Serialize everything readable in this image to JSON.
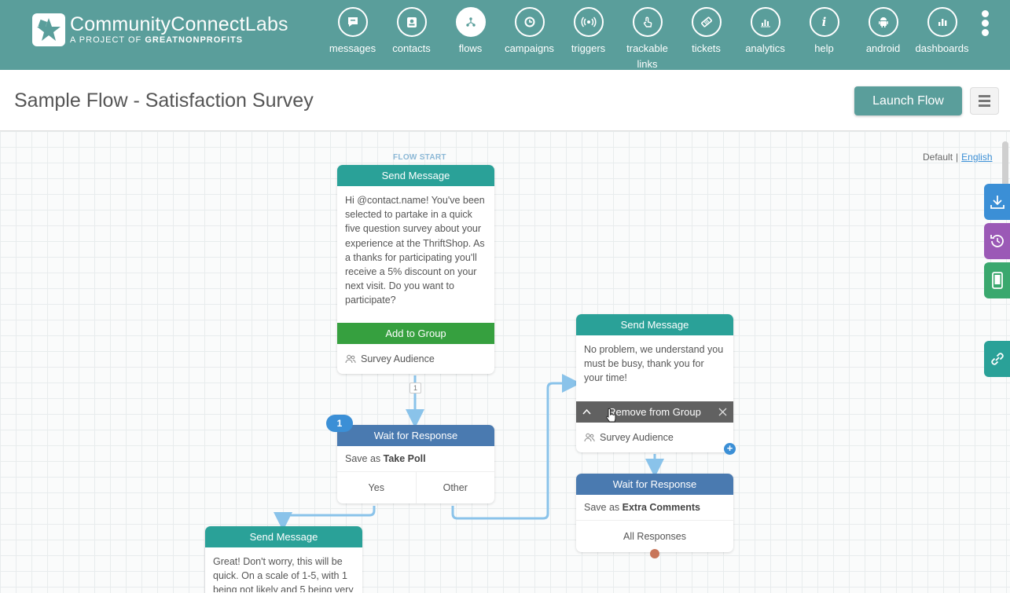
{
  "brand": {
    "title_main": "CommunityConnect",
    "title_light": "Labs",
    "subtitle_prefix": "A PROJECT OF ",
    "subtitle_bold": "GREATNONPROFITS"
  },
  "nav": {
    "items": [
      {
        "label": "messages",
        "icon": "chat-bubble-icon"
      },
      {
        "label": "contacts",
        "icon": "contact-card-icon"
      },
      {
        "label": "flows",
        "icon": "flow-tree-icon",
        "active": true
      },
      {
        "label": "campaigns",
        "icon": "campaign-clock-icon"
      },
      {
        "label": "triggers",
        "icon": "broadcast-icon"
      },
      {
        "label": "trackable links",
        "icon": "link-touch-icon"
      },
      {
        "label": "tickets",
        "icon": "ticket-icon"
      },
      {
        "label": "analytics",
        "icon": "bar-chart-icon"
      },
      {
        "label": "help",
        "icon": "info-icon"
      },
      {
        "label": "android",
        "icon": "android-icon"
      },
      {
        "label": "dashboards",
        "icon": "dashboard-bars-icon"
      }
    ],
    "accent": "#5a9e9b"
  },
  "page": {
    "title": "Sample Flow - Satisfaction Survey",
    "launch_label": "Launch Flow"
  },
  "language": {
    "default": "Default",
    "separator": "|",
    "english": "English"
  },
  "flow": {
    "start_label": "FLOW START",
    "node_msg1": {
      "header": "Send Message",
      "text": "Hi @contact.name! You've been selected to partake in a quick five question survey about your experience at the ThriftShop. As a thanks for participating you'll receive a 5% discount on your next visit. Do you want to participate?",
      "action": "Add to Group",
      "group": "Survey Audience"
    },
    "connector_count": "1",
    "node_wait1": {
      "badge": "1",
      "header": "Wait for Response",
      "save_prefix": "Save as ",
      "save_var": "Take Poll",
      "cases": [
        "Yes",
        "Other"
      ]
    },
    "node_msg2": {
      "header": "Send Message",
      "text": "No problem, we understand you must be busy, thank you for your time!",
      "action": "Remove from Group",
      "group": "Survey Audience"
    },
    "node_wait2": {
      "header": "Wait for Response",
      "save_prefix": "Save as ",
      "save_var": "Extra Comments",
      "cases": [
        "All Responses"
      ]
    },
    "node_msg3": {
      "header": "Send Message",
      "text": "Great! Don't worry, this will be quick. On a scale of 1-5, with 1 being not likely and 5 being very"
    }
  },
  "side_tabs": [
    {
      "icon": "download-icon",
      "color": "#3b8fd6"
    },
    {
      "icon": "history-icon",
      "color": "#9b59b6"
    },
    {
      "icon": "mobile-phone-icon",
      "color": "#3aa86e"
    },
    {
      "icon": "link-icon",
      "color": "#2aa198"
    }
  ]
}
